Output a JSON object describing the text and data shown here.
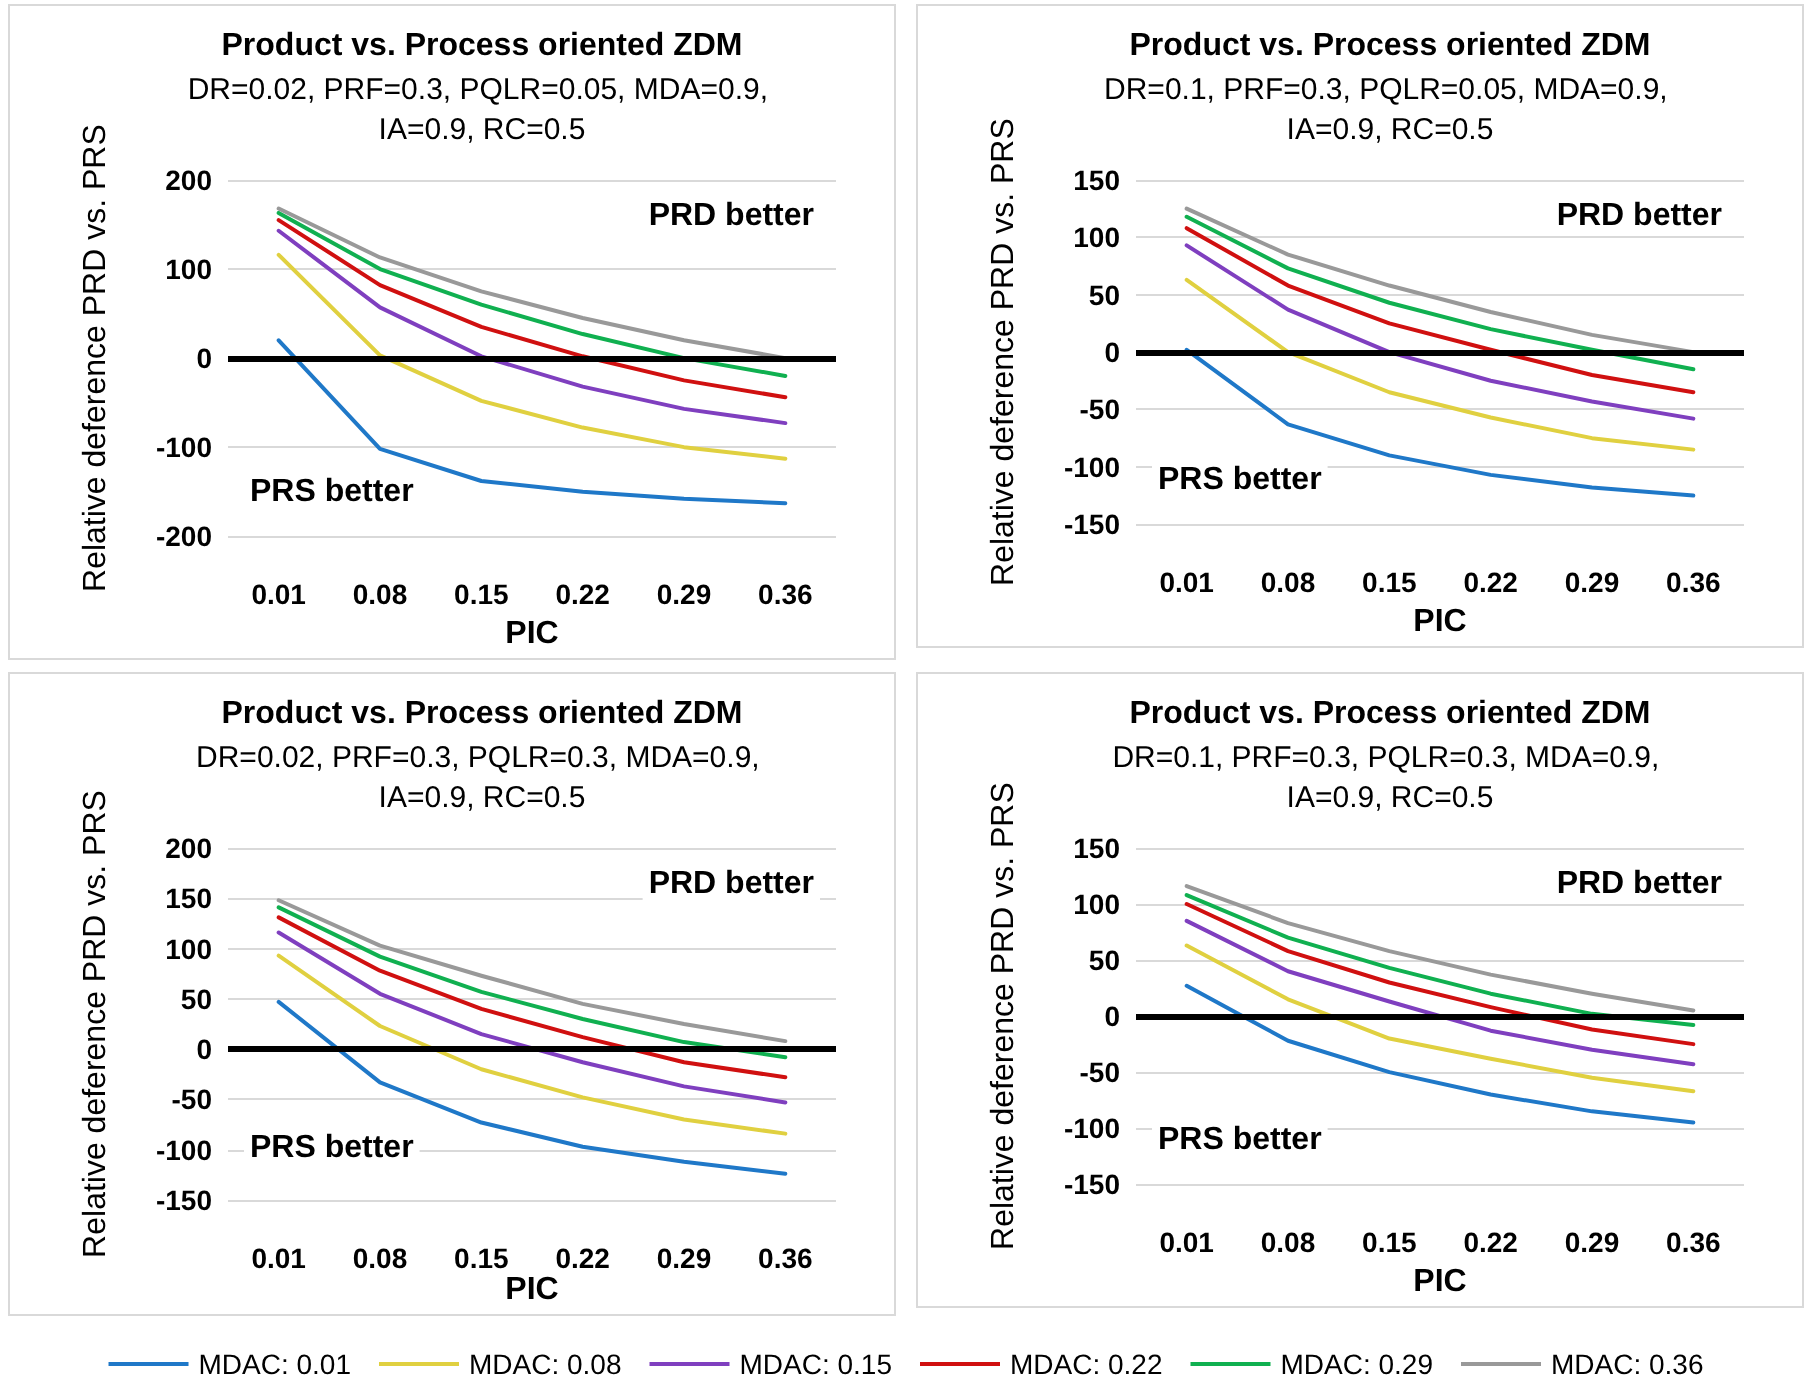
{
  "chart_data": [
    {
      "type": "line",
      "title": "Product vs. Process oriented ZDM",
      "subtitle": "DR=0.02, PRF=0.3, PQLR=0.05, MDA=0.9, IA=0.9, RC=0.5",
      "xlabel": "PIC",
      "ylabel": "Relative deference PRD vs. PRS",
      "annotations": [
        "PRD better",
        "PRS better"
      ],
      "categories": [
        "0.01",
        "0.08",
        "0.15",
        "0.22",
        "0.29",
        "0.36"
      ],
      "ylim": [
        -200,
        200
      ],
      "yticks": [
        -200,
        -100,
        0,
        100,
        200
      ],
      "grid": "y",
      "legend": false,
      "marker": "none",
      "ref_lines": [
        {
          "axis": "y",
          "value": 0,
          "color": "#000000"
        }
      ],
      "series": [
        {
          "color": "#1f78c8",
          "values": [
            20,
            -102,
            -138,
            -150,
            -158,
            -163
          ]
        },
        {
          "color": "#e0d040",
          "values": [
            116,
            3,
            -48,
            -78,
            -100,
            -113
          ]
        },
        {
          "color": "#7f3fbf",
          "values": [
            143,
            57,
            2,
            -32,
            -57,
            -73
          ]
        },
        {
          "color": "#d01010",
          "values": [
            155,
            82,
            35,
            2,
            -25,
            -44
          ]
        },
        {
          "color": "#10b050",
          "values": [
            163,
            100,
            60,
            27,
            0,
            -20
          ]
        },
        {
          "color": "#999999",
          "values": [
            168,
            113,
            75,
            45,
            20,
            0
          ]
        }
      ]
    },
    {
      "type": "line",
      "title": "Product vs. Process oriented ZDM",
      "subtitle": "DR=0.1, PRF=0.3, PQLR=0.05, MDA=0.9, IA=0.9, RC=0.5",
      "xlabel": "PIC",
      "ylabel": "Relative deference PRD vs. PRS",
      "annotations": [
        "PRD better",
        "PRS better"
      ],
      "categories": [
        "0.01",
        "0.08",
        "0.15",
        "0.22",
        "0.29",
        "0.36"
      ],
      "ylim": [
        -150,
        150
      ],
      "yticks": [
        -150,
        -100,
        -50,
        0,
        50,
        100,
        150
      ],
      "grid": "y",
      "legend": false,
      "marker": "none",
      "ref_lines": [
        {
          "axis": "y",
          "value": 0,
          "color": "#000000"
        }
      ],
      "series": [
        {
          "color": "#1f78c8",
          "values": [
            2,
            -63,
            -90,
            -107,
            -118,
            -125
          ]
        },
        {
          "color": "#e0d040",
          "values": [
            63,
            0,
            -35,
            -57,
            -75,
            -85
          ]
        },
        {
          "color": "#7f3fbf",
          "values": [
            93,
            37,
            0,
            -25,
            -43,
            -58
          ]
        },
        {
          "color": "#d01010",
          "values": [
            108,
            58,
            25,
            2,
            -20,
            -35
          ]
        },
        {
          "color": "#10b050",
          "values": [
            118,
            73,
            43,
            20,
            2,
            -15
          ]
        },
        {
          "color": "#999999",
          "values": [
            125,
            85,
            58,
            35,
            15,
            0
          ]
        }
      ]
    },
    {
      "type": "line",
      "title": "Product vs. Process oriented ZDM",
      "subtitle": "DR=0.02, PRF=0.3, PQLR=0.3, MDA=0.9, IA=0.9, RC=0.5",
      "xlabel": "PIC",
      "ylabel": "Relative deference PRD vs. PRS",
      "annotations": [
        "PRD better",
        "PRS better"
      ],
      "categories": [
        "0.01",
        "0.08",
        "0.15",
        "0.22",
        "0.29",
        "0.36"
      ],
      "ylim": [
        -150,
        200
      ],
      "yticks": [
        -150,
        -100,
        -50,
        0,
        50,
        100,
        150,
        200
      ],
      "grid": "y",
      "legend": "bottom",
      "marker": "none",
      "ref_lines": [
        {
          "axis": "y",
          "value": 0,
          "color": "#000000"
        }
      ],
      "series": [
        {
          "name": "MDAC: 0.01",
          "color": "#1f78c8",
          "values": [
            47,
            -33,
            -73,
            -97,
            -112,
            -124
          ]
        },
        {
          "name": "MDAC: 0.08",
          "color": "#e0d040",
          "values": [
            93,
            23,
            -20,
            -48,
            -70,
            -84
          ]
        },
        {
          "name": "MDAC: 0.15",
          "color": "#7f3fbf",
          "values": [
            116,
            55,
            15,
            -13,
            -37,
            -53
          ]
        },
        {
          "name": "MDAC: 0.22",
          "color": "#d01010",
          "values": [
            131,
            78,
            40,
            12,
            -13,
            -28
          ]
        },
        {
          "name": "MDAC: 0.29",
          "color": "#10b050",
          "values": [
            141,
            92,
            57,
            30,
            7,
            -8
          ]
        },
        {
          "name": "MDAC: 0.36",
          "color": "#999999",
          "values": [
            148,
            103,
            73,
            45,
            25,
            8
          ]
        }
      ]
    },
    {
      "type": "line",
      "title": "Product vs. Process oriented ZDM",
      "subtitle": "DR=0.1, PRF=0.3, PQLR=0.3, MDA=0.9, IA=0.9, RC=0.5",
      "xlabel": "PIC",
      "ylabel": "Relative deference PRD vs. PRS",
      "annotations": [
        "PRD better",
        "PRS better"
      ],
      "categories": [
        "0.01",
        "0.08",
        "0.15",
        "0.22",
        "0.29",
        "0.36"
      ],
      "ylim": [
        -150,
        150
      ],
      "yticks": [
        -150,
        -100,
        -50,
        0,
        50,
        100,
        150
      ],
      "grid": "y",
      "legend": false,
      "marker": "none",
      "ref_lines": [
        {
          "axis": "y",
          "value": 0,
          "color": "#000000"
        }
      ],
      "series": [
        {
          "color": "#1f78c8",
          "values": [
            27,
            -22,
            -50,
            -70,
            -85,
            -95
          ]
        },
        {
          "color": "#e0d040",
          "values": [
            63,
            15,
            -20,
            -38,
            -55,
            -67
          ]
        },
        {
          "color": "#7f3fbf",
          "values": [
            85,
            40,
            13,
            -13,
            -30,
            -43
          ]
        },
        {
          "color": "#d01010",
          "values": [
            100,
            58,
            30,
            8,
            -12,
            -25
          ]
        },
        {
          "color": "#10b050",
          "values": [
            108,
            70,
            43,
            20,
            2,
            -8
          ]
        },
        {
          "color": "#999999",
          "values": [
            116,
            83,
            58,
            37,
            20,
            5
          ]
        }
      ]
    }
  ]
}
